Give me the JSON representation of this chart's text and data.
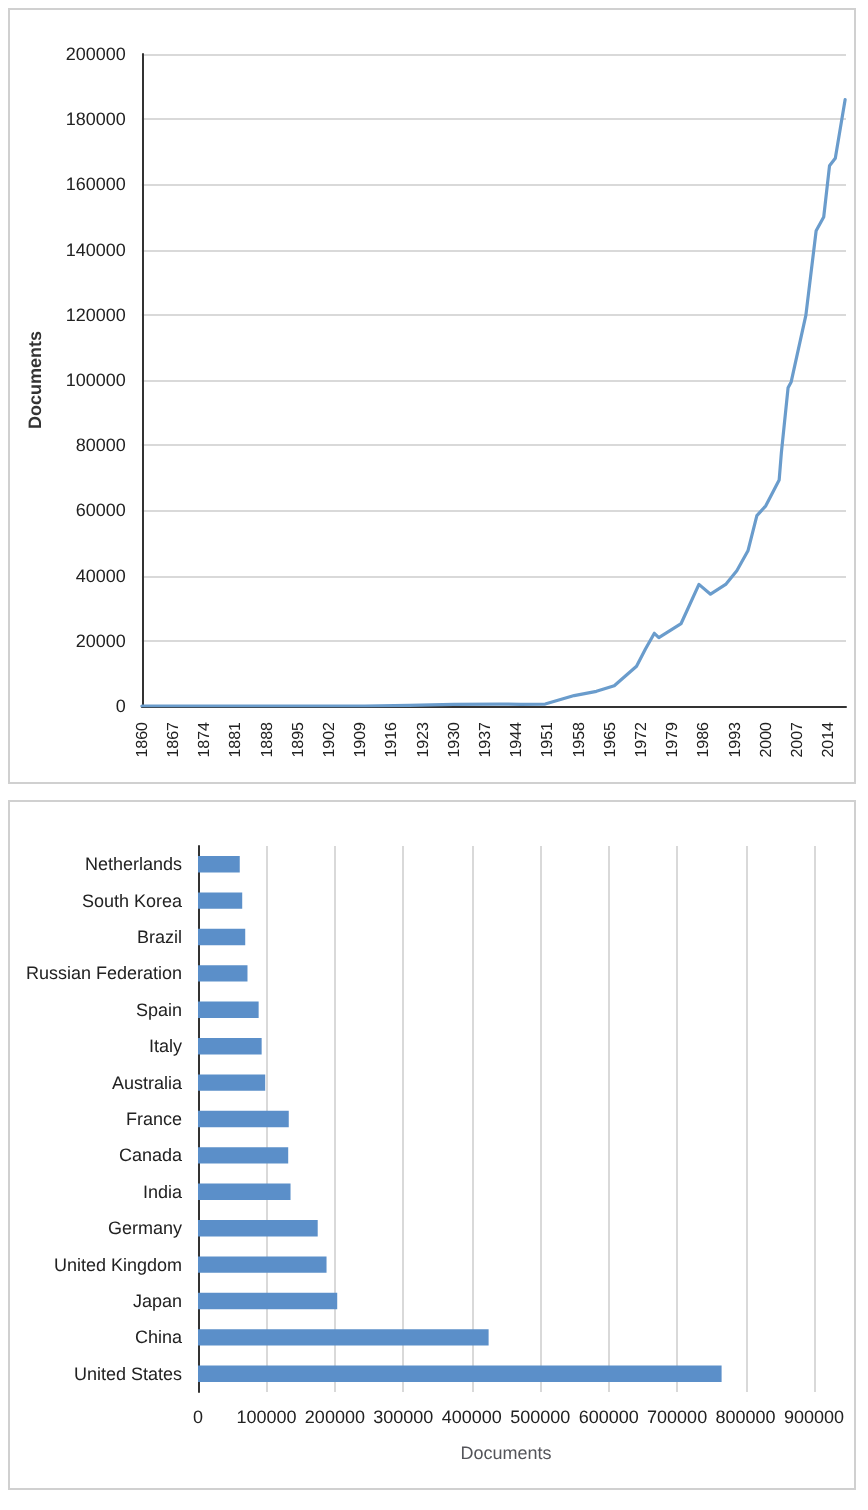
{
  "chart_data": [
    {
      "type": "line",
      "ylabel": "Documents",
      "x": [
        1860,
        1870,
        1880,
        1890,
        1900,
        1910,
        1920,
        1930,
        1940,
        1945,
        1950.5,
        1957,
        1962,
        1966,
        1971,
        1973,
        1975,
        1976,
        1981,
        1985,
        1987.6,
        1991,
        1993.5,
        1996,
        1998,
        2000,
        2003,
        2003.5,
        2005,
        2005.7,
        2009,
        2011.3,
        2013,
        2014.3,
        2015.6,
        2017.8
      ],
      "series": [
        {
          "color": "#6a9ccc",
          "values": [
            0,
            0,
            0,
            0,
            0,
            0,
            200,
            500,
            600,
            500,
            600,
            3200,
            4500,
            6200,
            12200,
            17500,
            22300,
            21000,
            25300,
            37300,
            34300,
            37300,
            41500,
            47600,
            58400,
            61400,
            69300,
            77700,
            97600,
            99400,
            119900,
            145800,
            150000,
            165700,
            168000,
            186000
          ]
        }
      ],
      "xlim": [
        1860,
        2018
      ],
      "xticks": [
        1860,
        1867,
        1874,
        1881,
        1888,
        1895,
        1902,
        1909,
        1916,
        1923,
        1930,
        1937,
        1944,
        1951,
        1958,
        1965,
        1972,
        1979,
        1986,
        1993,
        2000,
        2007,
        2014
      ],
      "ylim": [
        0,
        200000
      ],
      "yticks": [
        0,
        20000,
        40000,
        60000,
        80000,
        100000,
        120000,
        140000,
        160000,
        180000,
        200000
      ],
      "grid": "y",
      "marker": "none",
      "line_style": "solid"
    },
    {
      "type": "bar",
      "orientation": "horizontal",
      "xlabel": "Documents",
      "categories": [
        "Netherlands",
        "South Korea",
        "Brazil",
        "Russian Federation",
        "Spain",
        "Italy",
        "Australia",
        "France",
        "Canada",
        "India",
        "Germany",
        "United Kingdom",
        "Japan",
        "China",
        "United States"
      ],
      "series": [
        {
          "color": "#5b8fc9",
          "values": [
            61000,
            64600,
            69000,
            72300,
            88600,
            93000,
            98200,
            132600,
            131800,
            135200,
            174900,
            187800,
            203400,
            424600,
            765000
          ]
        }
      ],
      "xlim": [
        0,
        900000
      ],
      "xticks": [
        0,
        100000,
        200000,
        300000,
        400000,
        500000,
        600000,
        700000,
        800000,
        900000
      ],
      "grid": "x"
    }
  ]
}
